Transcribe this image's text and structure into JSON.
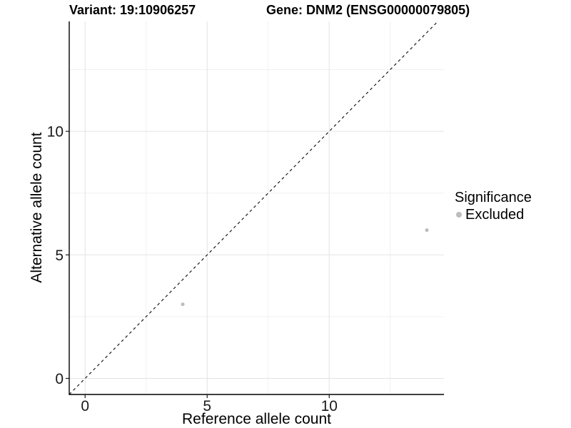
{
  "chart_data": {
    "type": "scatter",
    "title_variant": "Variant: 19:10906257",
    "title_gene": "Gene: DNM2 (ENSG00000079805)",
    "xlabel": "Reference allele count",
    "ylabel": "Alternative allele count",
    "xlim": [
      -0.65,
      14.7
    ],
    "ylim": [
      -0.65,
      14.45
    ],
    "xticks": [
      0,
      5,
      10
    ],
    "yticks": [
      0,
      5,
      10
    ],
    "xminor": [
      2.5,
      7.5,
      12.5
    ],
    "yminor": [
      2.5,
      7.5,
      12.5
    ],
    "grid": "major and minor gridlines on white panel",
    "series": [
      {
        "name": "Excluded",
        "color": "#bdbdbd",
        "points": [
          {
            "x": 4,
            "y": 3
          },
          {
            "x": 14,
            "y": 6
          }
        ]
      }
    ],
    "abline": {
      "slope": 1,
      "intercept": 0,
      "style": "dashed",
      "color": "#1a1a1a"
    },
    "legend": {
      "position": "right",
      "title": "Significance",
      "items": [
        {
          "label": "Excluded",
          "color": "#bdbdbd"
        }
      ]
    }
  },
  "colors": {
    "background": "#ffffff",
    "grid_major": "#e3e3e3",
    "grid_minor": "#f1f1f1",
    "axis_line": "#000000",
    "tick_mark": "#1a1a1a",
    "tick_label": "#1a1a1a",
    "point": "#bdbdbd"
  }
}
